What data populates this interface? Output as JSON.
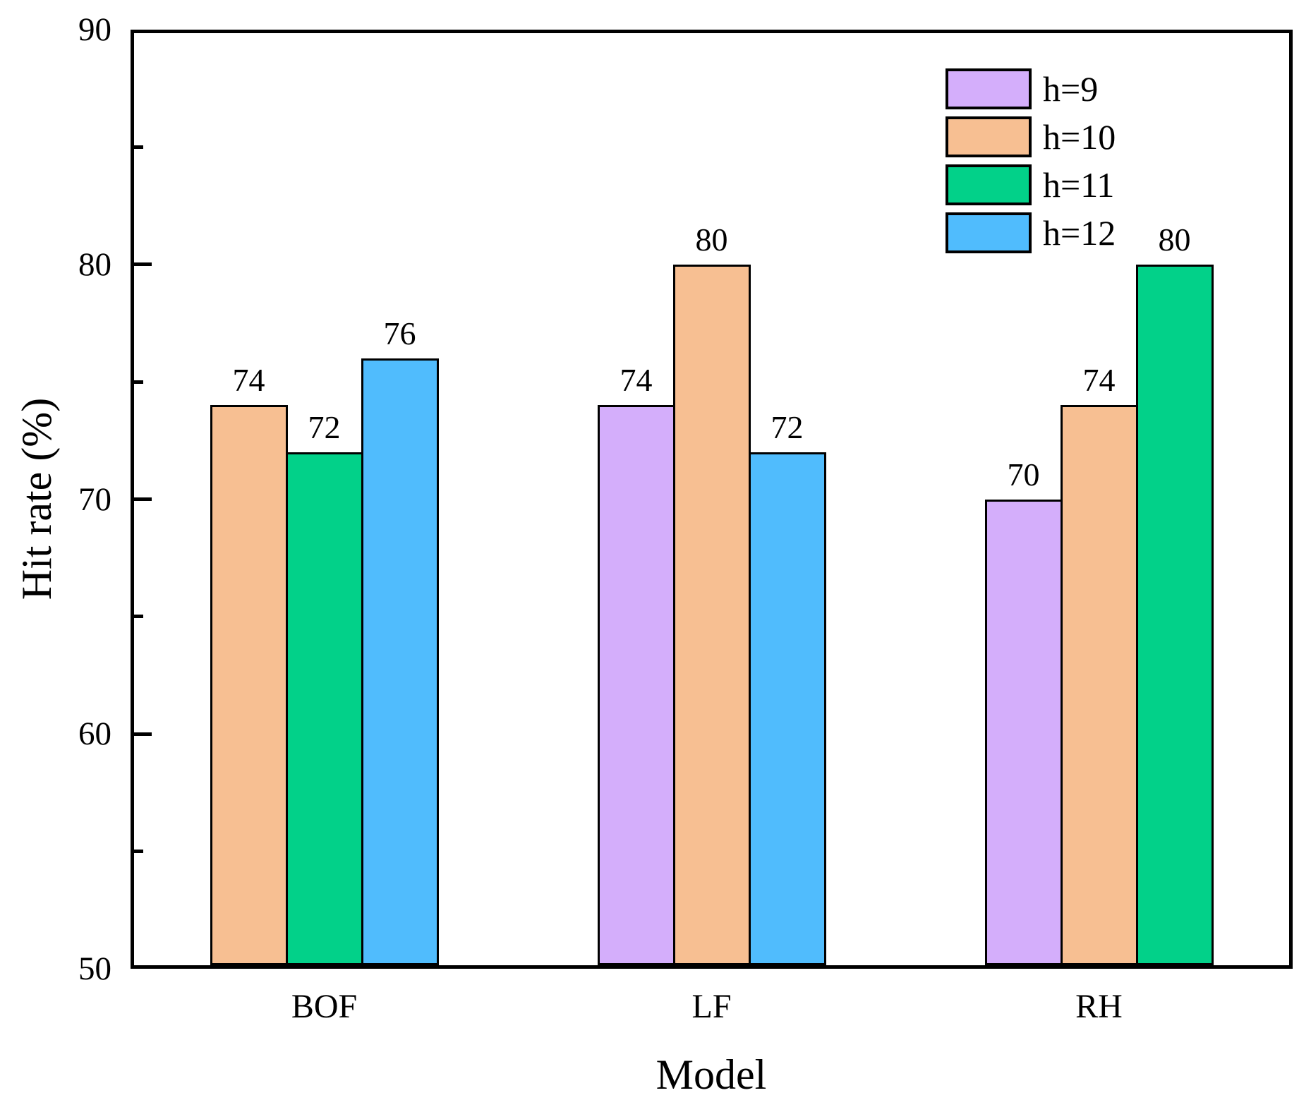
{
  "chart_data": {
    "type": "bar",
    "title": "",
    "xlabel": "Model",
    "ylabel": "Hit rate (%)",
    "ylim": [
      50,
      90
    ],
    "yticks_major": [
      50,
      60,
      70,
      80,
      90
    ],
    "yticks_minor": [
      55,
      65,
      75,
      85
    ],
    "categories": [
      "BOF",
      "LF",
      "RH"
    ],
    "series": [
      {
        "name": "h=9",
        "color": "#D4AEFB",
        "values": [
          null,
          74,
          70
        ]
      },
      {
        "name": "h=10",
        "color": "#F7BF92",
        "values": [
          74,
          80,
          74
        ]
      },
      {
        "name": "h=11",
        "color": "#02D189",
        "values": [
          72,
          null,
          80
        ]
      },
      {
        "name": "h=12",
        "color": "#50BCFD",
        "values": [
          76,
          72,
          null
        ]
      }
    ],
    "bar_labels": true,
    "grid": false,
    "legend_position": "top-right",
    "bar_border_color": "#000000",
    "axis_color": "#000000"
  }
}
